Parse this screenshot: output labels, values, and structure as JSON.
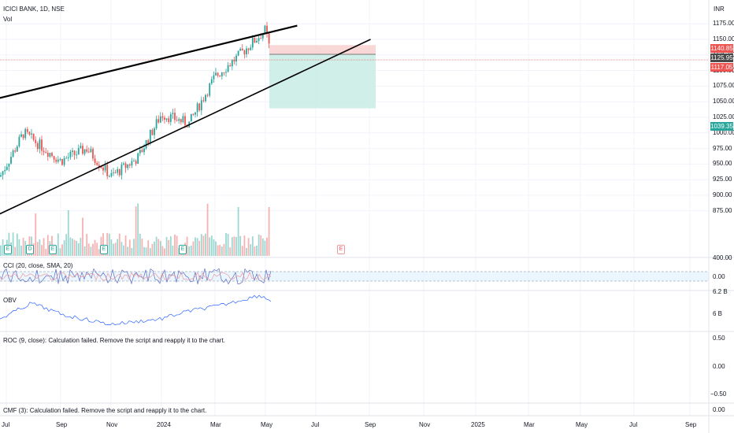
{
  "header": {
    "symbol": "ICICI BANK, 1D, NSE",
    "vol_label": "Vol",
    "currency": "INR"
  },
  "price_axis": {
    "ticks": [
      "1175.00",
      "1150.00",
      "1125.00",
      "1100.00",
      "1075.00",
      "1050.00",
      "1025.00",
      "1000.00",
      "975.00",
      "950.00",
      "925.00",
      "900.00",
      "875.00"
    ]
  },
  "price_badges": [
    {
      "text": "1140.85",
      "color": "#ef5350"
    },
    {
      "text": "1125.95",
      "color": "#4a4a4a"
    },
    {
      "text": "1117.05",
      "color": "#ef5350"
    },
    {
      "text": "1039.35",
      "color": "#26a69a"
    }
  ],
  "indicators": {
    "cci": {
      "label": "CCI (20, close, SMA, 20)",
      "ticks": [
        "400.00",
        "0.00"
      ]
    },
    "obv": {
      "label": "OBV",
      "ticks": [
        "6.2 B",
        "6 B"
      ]
    },
    "roc": {
      "label": "ROC (9, close): Calculation failed. Remove the script and reapply it to the chart.",
      "ticks": [
        "0.50",
        "0.00",
        "−0.50"
      ]
    },
    "cmf": {
      "label": "CMF (3): Calculation failed. Remove the script and reapply it to the chart.",
      "ticks": [
        "0.00"
      ]
    }
  },
  "time_axis": {
    "labels": [
      "Jul",
      "Sep",
      "Nov",
      "2024",
      "Mar",
      "May",
      "Jul",
      "Sep",
      "Nov",
      "2025",
      "Mar",
      "May",
      "Jul",
      "Sep"
    ]
  },
  "event_markers": [
    "E",
    "D",
    "E",
    "E",
    "E",
    "E"
  ],
  "colors": {
    "up": "#26a69a",
    "down": "#ef5350",
    "line": "#000000",
    "stop_zone": "#f7c9c8",
    "target_zone": "#c6ebe3"
  },
  "chart_data": {
    "type": "candlestick",
    "title": "ICICI BANK, 1D, NSE",
    "ylabel": "INR",
    "ylim": [
      870,
      1185
    ],
    "x": [
      "2023-07",
      "2023-08",
      "2023-09",
      "2023-10",
      "2023-11",
      "2023-12",
      "2024-01",
      "2024-02",
      "2024-03",
      "2024-04",
      "2024-05"
    ],
    "close": [
      945,
      1000,
      960,
      975,
      935,
      985,
      1035,
      1020,
      1085,
      1110,
      1120
    ],
    "trendlines": [
      {
        "from": [
          "2023-06-20",
          1055
        ],
        "to": [
          "2024-06-10",
          1172
        ]
      },
      {
        "from": [
          "2023-06-20",
          868
        ],
        "to": [
          "2024-09-05",
          1150
        ]
      }
    ],
    "position": {
      "stop": 1140.85,
      "entry": 1125.95,
      "last_price": 1117.05,
      "target": 1039.35
    }
  }
}
